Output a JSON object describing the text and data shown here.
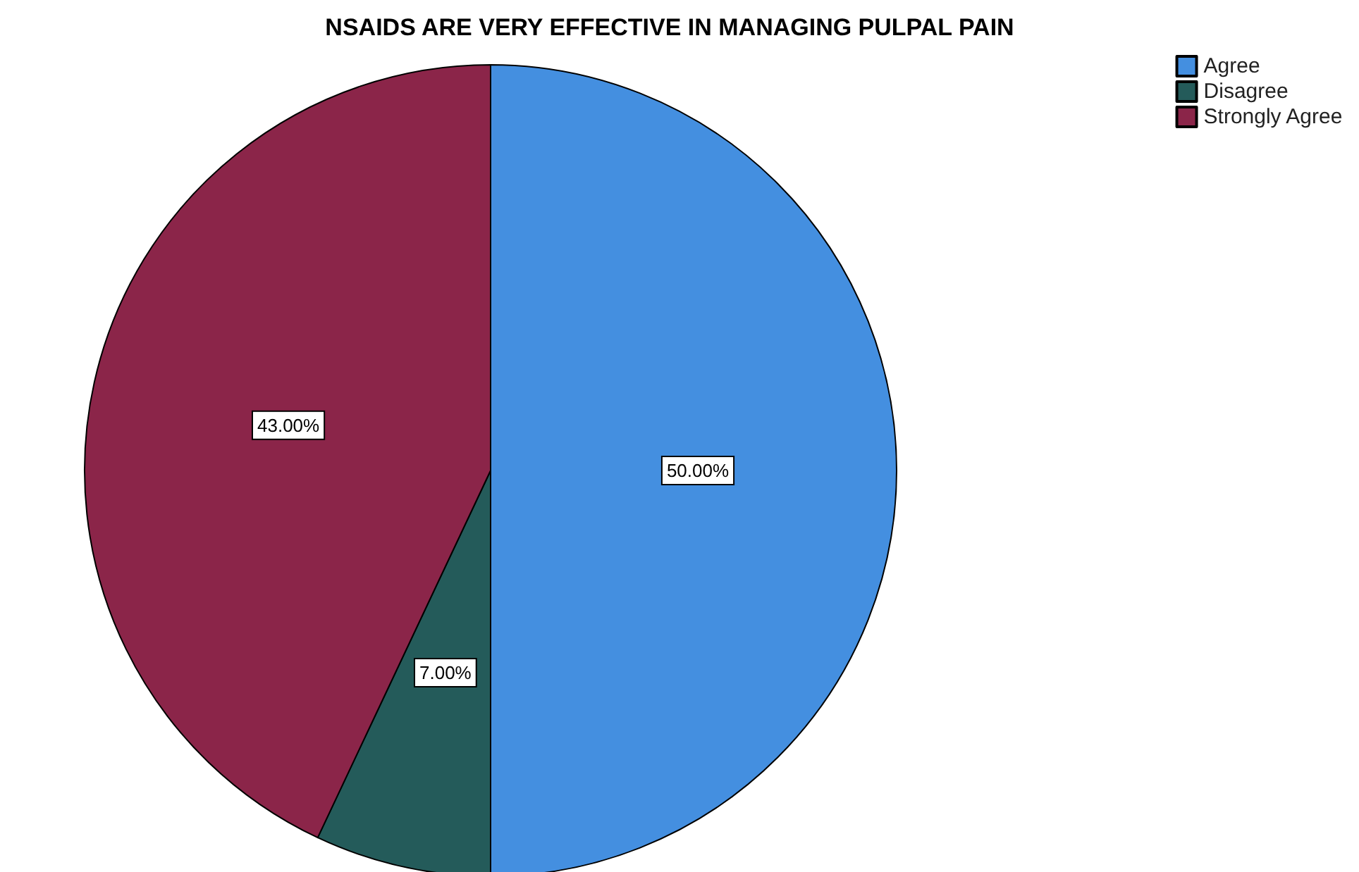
{
  "chart_data": {
    "type": "pie",
    "title": "NSAIDS ARE VERY EFFECTIVE IN MANAGING PULPAL PAIN",
    "categories": [
      "Agree",
      "Disagree",
      "Strongly Agree"
    ],
    "values": [
      50,
      7,
      43
    ],
    "colors": [
      "#448fe0",
      "#245b5a",
      "#8b2549"
    ],
    "value_labels": [
      "50.00%",
      "7.00%",
      "43.00%"
    ],
    "legend": "top right"
  }
}
